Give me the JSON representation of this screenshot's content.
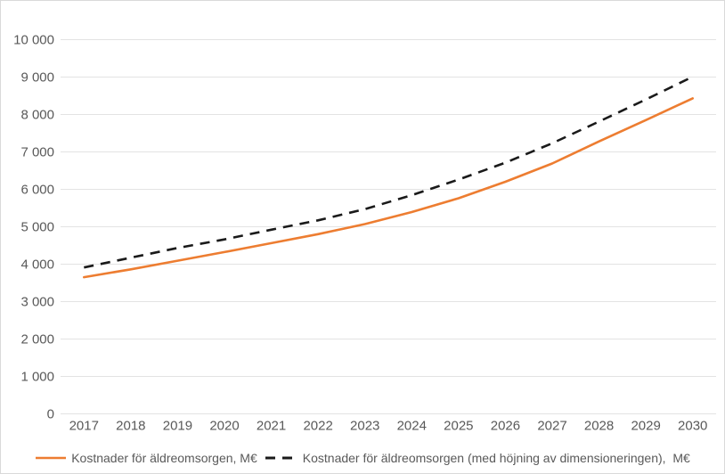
{
  "chart_data": {
    "type": "line",
    "title": "",
    "xlabel": "",
    "ylabel": "",
    "categories": [
      "2017",
      "2018",
      "2019",
      "2020",
      "2021",
      "2022",
      "2023",
      "2024",
      "2025",
      "2026",
      "2027",
      "2028",
      "2029",
      "2030"
    ],
    "series": [
      {
        "name": "Kostnader för äldreomsorgen, M€",
        "color": "#ED7D31",
        "line_style": "solid",
        "values": [
          3650,
          3860,
          4090,
          4320,
          4560,
          4800,
          5070,
          5390,
          5760,
          6200,
          6690,
          7280,
          7850,
          8430
        ]
      },
      {
        "name": "Kostnader för äldreomsorgen (med höjning av dimensioneringen),  M€",
        "color": "#1a1a1a",
        "line_style": "dashed",
        "values": [
          3910,
          4170,
          4430,
          4660,
          4920,
          5170,
          5470,
          5840,
          6260,
          6710,
          7230,
          7810,
          8400,
          9010
        ]
      }
    ],
    "ylim": [
      0,
      10000
    ],
    "yticks": [
      {
        "value": 0,
        "label": "0"
      },
      {
        "value": 1000,
        "label": "1 000"
      },
      {
        "value": 2000,
        "label": "2 000"
      },
      {
        "value": 3000,
        "label": "3 000"
      },
      {
        "value": 4000,
        "label": "4 000"
      },
      {
        "value": 5000,
        "label": "5 000"
      },
      {
        "value": 6000,
        "label": "6 000"
      },
      {
        "value": 7000,
        "label": "7 000"
      },
      {
        "value": 8000,
        "label": "8 000"
      },
      {
        "value": 9000,
        "label": "9 000"
      },
      {
        "value": 10000,
        "label": "10 000"
      }
    ],
    "grid": "horizontal",
    "legend_position": "bottom"
  },
  "colors": {
    "grid": "#e3e3e3",
    "axis_text": "#595959",
    "frame_border": "#d9d9d9",
    "background": "#ffffff"
  }
}
